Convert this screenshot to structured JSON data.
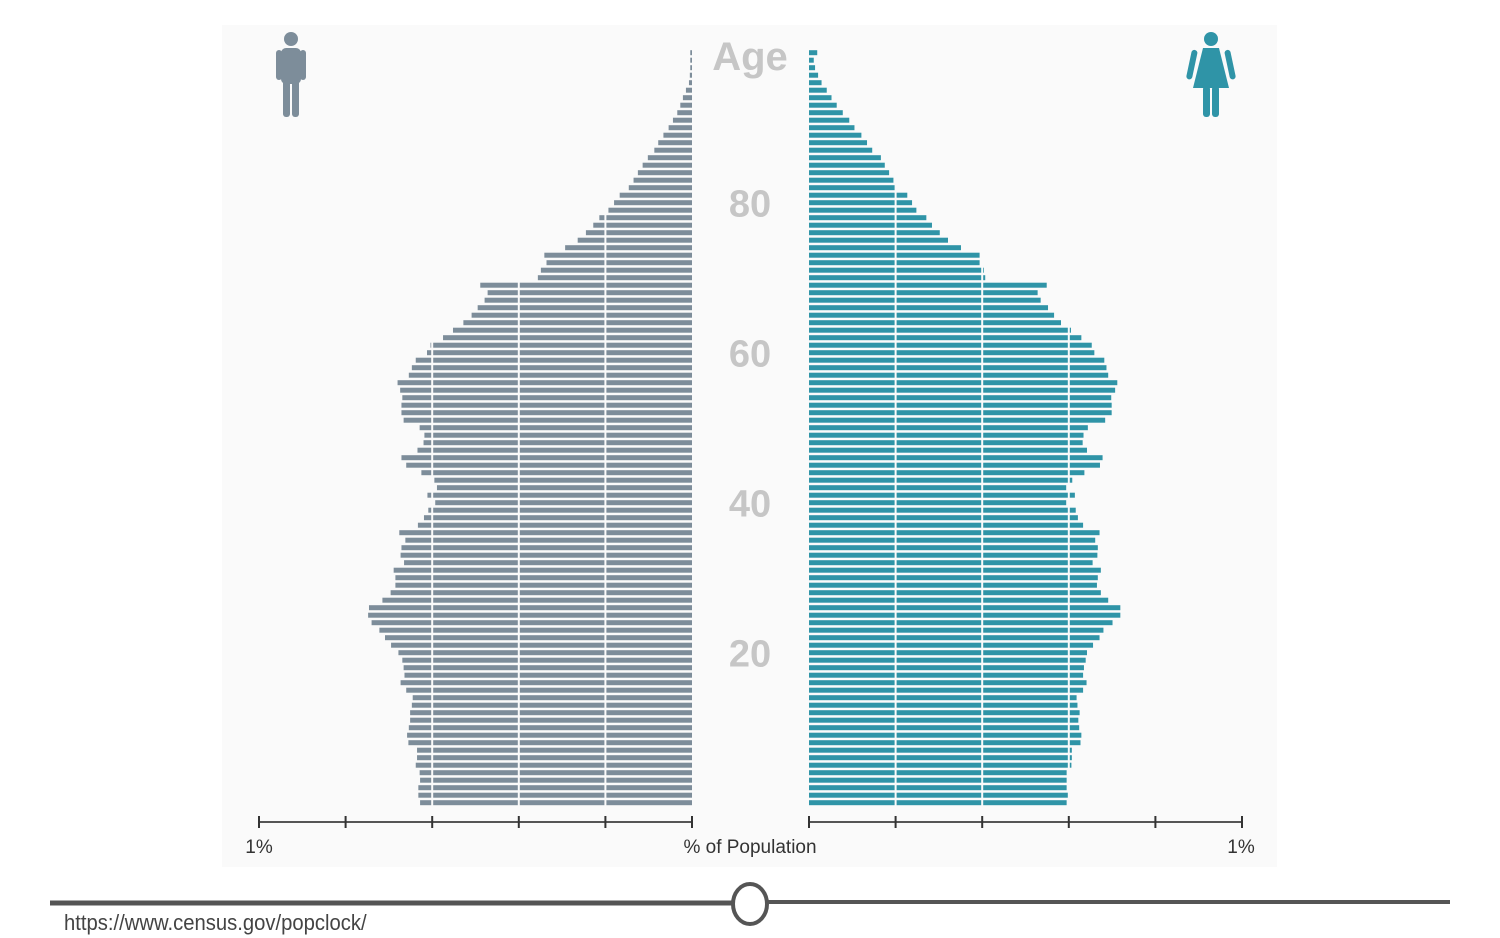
{
  "chart_data": {
    "type": "bar",
    "subtype": "population-pyramid",
    "age_axis_label": "Age",
    "age_tick_labels": [
      "20",
      "40",
      "60",
      "80"
    ],
    "age_ticks": [
      20,
      40,
      60,
      80
    ],
    "x_axis_label": "% of Population",
    "x_left_label": "1%",
    "x_right_label": "1%",
    "xlim": [
      0,
      1
    ],
    "x_tick_step": 0.2,
    "grid": true,
    "age_order": "descending from 100 to 0",
    "ages_start": 100,
    "series": [
      {
        "name": "Male",
        "icon": "male-icon",
        "color": "#7d8d9a",
        "values": [
          0.004,
          0.004,
          0.004,
          0.005,
          0.007,
          0.014,
          0.021,
          0.027,
          0.034,
          0.044,
          0.054,
          0.066,
          0.078,
          0.087,
          0.102,
          0.114,
          0.125,
          0.135,
          0.146,
          0.167,
          0.18,
          0.193,
          0.214,
          0.228,
          0.245,
          0.264,
          0.293,
          0.341,
          0.336,
          0.349,
          0.356,
          0.489,
          0.472,
          0.479,
          0.495,
          0.509,
          0.528,
          0.552,
          0.575,
          0.604,
          0.612,
          0.638,
          0.647,
          0.654,
          0.68,
          0.674,
          0.669,
          0.671,
          0.671,
          0.666,
          0.629,
          0.618,
          0.62,
          0.634,
          0.671,
          0.66,
          0.625,
          0.595,
          0.589,
          0.611,
          0.593,
          0.609,
          0.619,
          0.633,
          0.676,
          0.662,
          0.671,
          0.673,
          0.665,
          0.689,
          0.685,
          0.685,
          0.696,
          0.715,
          0.746,
          0.748,
          0.74,
          0.722,
          0.709,
          0.695,
          0.678,
          0.669,
          0.666,
          0.664,
          0.673,
          0.66,
          0.645,
          0.647,
          0.651,
          0.651,
          0.654,
          0.658,
          0.655,
          0.635,
          0.635,
          0.638,
          0.629,
          0.628,
          0.632,
          0.632,
          0.628
        ]
      },
      {
        "name": "Female",
        "icon": "female-icon",
        "color": "#2f94a7",
        "values": [
          0.019,
          0.011,
          0.014,
          0.021,
          0.029,
          0.041,
          0.052,
          0.064,
          0.078,
          0.093,
          0.105,
          0.121,
          0.134,
          0.146,
          0.166,
          0.175,
          0.185,
          0.195,
          0.2,
          0.227,
          0.238,
          0.248,
          0.271,
          0.284,
          0.302,
          0.321,
          0.351,
          0.394,
          0.394,
          0.404,
          0.407,
          0.549,
          0.528,
          0.535,
          0.552,
          0.566,
          0.582,
          0.605,
          0.629,
          0.653,
          0.659,
          0.682,
          0.687,
          0.691,
          0.712,
          0.707,
          0.698,
          0.699,
          0.699,
          0.684,
          0.644,
          0.634,
          0.632,
          0.642,
          0.678,
          0.672,
          0.636,
          0.608,
          0.594,
          0.614,
          0.594,
          0.616,
          0.621,
          0.633,
          0.671,
          0.661,
          0.667,
          0.666,
          0.655,
          0.674,
          0.667,
          0.665,
          0.674,
          0.691,
          0.719,
          0.719,
          0.701,
          0.68,
          0.671,
          0.656,
          0.642,
          0.639,
          0.635,
          0.633,
          0.641,
          0.633,
          0.618,
          0.62,
          0.625,
          0.622,
          0.624,
          0.629,
          0.627,
          0.607,
          0.607,
          0.606,
          0.595,
          0.595,
          0.595,
          0.6,
          0.595
        ]
      }
    ]
  },
  "slider": {
    "value": 0.5
  },
  "source_url": "https://www.census.gov/popclock/"
}
